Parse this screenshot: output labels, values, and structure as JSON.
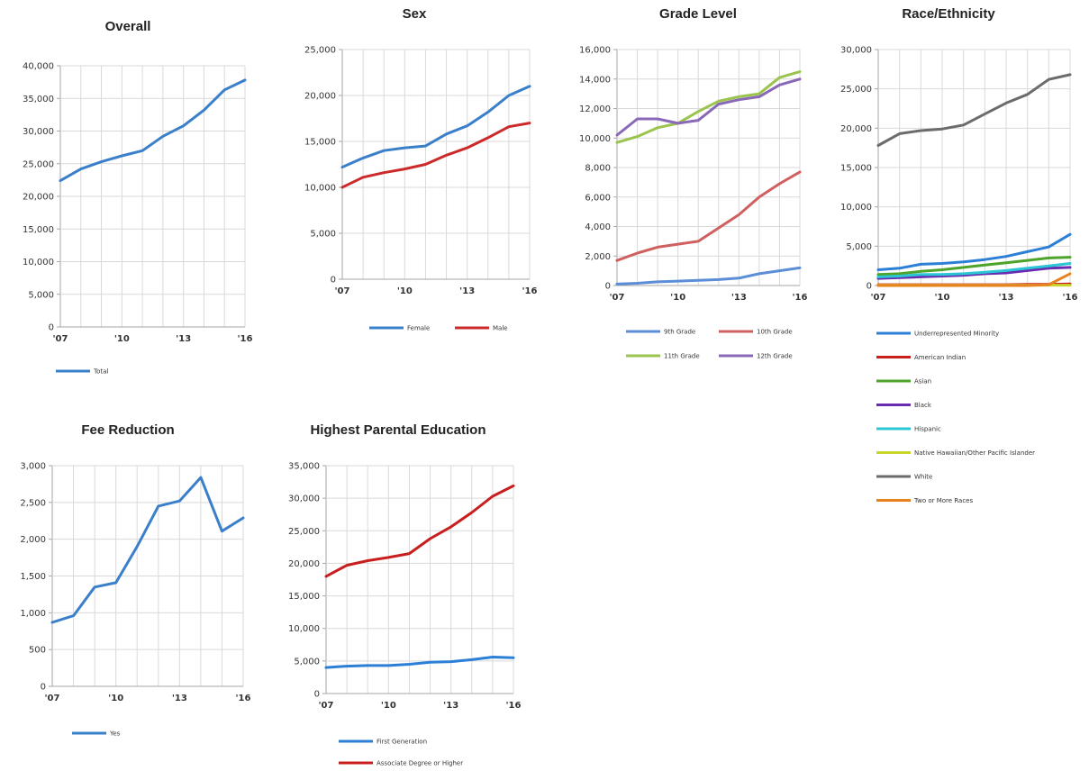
{
  "chart_data": [
    {
      "type": "line",
      "title": "Overall",
      "x": [
        2007,
        2008,
        2009,
        2010,
        2011,
        2012,
        2013,
        2014,
        2015,
        2016
      ],
      "x_ticks": [
        "'07",
        "'10",
        "'13",
        "'16"
      ],
      "ylim": [
        0,
        40000
      ],
      "y_step": 5000,
      "y_ticks_labels": [
        "0",
        "5,000",
        "10,000",
        "15,000",
        "20,000",
        "25,000",
        "30,000",
        "35,000",
        "40,000"
      ],
      "grid": true,
      "legend": "bottom",
      "series": [
        {
          "name": "Total",
          "color": "#3a7fc9",
          "values": [
            22400,
            24200,
            25300,
            26200,
            27000,
            29200,
            30800,
            33200,
            36300,
            37800
          ]
        }
      ]
    },
    {
      "type": "line",
      "title": "Sex",
      "x": [
        2007,
        2008,
        2009,
        2010,
        2011,
        2012,
        2013,
        2014,
        2015,
        2016
      ],
      "x_ticks": [
        "'07",
        "'10",
        "'13",
        "'16"
      ],
      "ylim": [
        0,
        25000
      ],
      "y_step": 5000,
      "y_ticks_labels": [
        "0",
        "5,000",
        "10,000",
        "15,000",
        "20,000",
        "25,000"
      ],
      "grid": true,
      "legend": "bottom",
      "series": [
        {
          "name": "Female",
          "color": "#3a7fc9",
          "values": [
            12200,
            13200,
            14000,
            14300,
            14500,
            15800,
            16700,
            18200,
            20000,
            21000
          ]
        },
        {
          "name": "Male",
          "color": "#cc2a2a",
          "values": [
            10000,
            11100,
            11600,
            12000,
            12500,
            13500,
            14300,
            15400,
            16600,
            17000
          ]
        }
      ]
    },
    {
      "type": "line",
      "title": "Grade Level",
      "x": [
        2007,
        2008,
        2009,
        2010,
        2011,
        2012,
        2013,
        2014,
        2015,
        2016
      ],
      "x_ticks": [
        "'07",
        "'10",
        "'13",
        "'16"
      ],
      "ylim": [
        0,
        16000
      ],
      "y_step": 2000,
      "y_ticks_labels": [
        "0",
        "2,000",
        "4,000",
        "6,000",
        "8,000",
        "10,000",
        "12,000",
        "14,000",
        "16,000"
      ],
      "grid": true,
      "legend": "bottom",
      "series": [
        {
          "name": "9th Grade",
          "color": "#5b8ed6",
          "values": [
            100,
            150,
            250,
            300,
            350,
            400,
            500,
            800,
            1000,
            1200
          ]
        },
        {
          "name": "10th Grade",
          "color": "#d06060",
          "values": [
            1700,
            2200,
            2600,
            2800,
            3000,
            3900,
            4800,
            6000,
            6900,
            7700
          ]
        },
        {
          "name": "11th Grade",
          "color": "#9bc44e",
          "values": [
            9700,
            10100,
            10700,
            11000,
            11800,
            12500,
            12800,
            13000,
            14100,
            14500
          ]
        },
        {
          "name": "12th Grade",
          "color": "#8a68b8",
          "values": [
            10200,
            11300,
            11300,
            11000,
            11200,
            12300,
            12600,
            12800,
            13600,
            14000
          ]
        }
      ]
    },
    {
      "type": "line",
      "title": "Race/Ethnicity",
      "x": [
        2007,
        2008,
        2009,
        2010,
        2011,
        2012,
        2013,
        2014,
        2015,
        2016
      ],
      "x_ticks": [
        "'07",
        "'10",
        "'13",
        "'16"
      ],
      "ylim": [
        0,
        30000
      ],
      "y_step": 5000,
      "y_ticks_labels": [
        "0",
        "5,000",
        "10,000",
        "15,000",
        "20,000",
        "25,000",
        "30,000"
      ],
      "grid": true,
      "legend": "bottom",
      "series": [
        {
          "name": "Underrepresented Minority",
          "color": "#2c7fd6",
          "values": [
            2000,
            2200,
            2700,
            2800,
            3000,
            3300,
            3700,
            4300,
            4900,
            6500
          ]
        },
        {
          "name": "American Indian",
          "color": "#c81e1e",
          "values": [
            100,
            100,
            100,
            100,
            100,
            100,
            100,
            150,
            150,
            200
          ]
        },
        {
          "name": "Asian",
          "color": "#4ea32a",
          "values": [
            1400,
            1500,
            1800,
            2000,
            2300,
            2600,
            2900,
            3200,
            3500,
            3600
          ]
        },
        {
          "name": "Black",
          "color": "#6a2bb0",
          "values": [
            900,
            1000,
            1100,
            1200,
            1300,
            1500,
            1600,
            1900,
            2200,
            2300
          ]
        },
        {
          "name": "Hispanic",
          "color": "#2bc6d6",
          "values": [
            1100,
            1200,
            1400,
            1400,
            1500,
            1700,
            1900,
            2200,
            2500,
            2800
          ]
        },
        {
          "name": "Native Hawaiian/Other Pacific Islander",
          "color": "#c8d62b",
          "values": [
            50,
            50,
            50,
            50,
            50,
            50,
            50,
            50,
            50,
            50
          ]
        },
        {
          "name": "White",
          "color": "#6b6b6b",
          "values": [
            17800,
            19300,
            19700,
            19900,
            20400,
            21800,
            23200,
            24300,
            26200,
            26800
          ]
        },
        {
          "name": "Two or More Races",
          "color": "#e8821e",
          "values": [
            0,
            0,
            0,
            0,
            0,
            0,
            0,
            0,
            100,
            1500
          ]
        }
      ]
    },
    {
      "type": "line",
      "title": "Fee Reduction",
      "x": [
        2007,
        2008,
        2009,
        2010,
        2011,
        2012,
        2013,
        2014,
        2015,
        2016
      ],
      "x_ticks": [
        "'07",
        "'10",
        "'13",
        "'16"
      ],
      "ylim": [
        0,
        3000
      ],
      "y_step": 500,
      "y_ticks_labels": [
        "0",
        "500",
        "1,000",
        "1,500",
        "2,000",
        "2,500",
        "3,000"
      ],
      "grid": true,
      "legend": "bottom",
      "series": [
        {
          "name": "Yes",
          "color": "#3a7fc9",
          "values": [
            870,
            960,
            1350,
            1410,
            1900,
            2450,
            2520,
            2840,
            2110,
            2290
          ]
        }
      ]
    },
    {
      "type": "line",
      "title": "Highest Parental Education",
      "x": [
        2007,
        2008,
        2009,
        2010,
        2011,
        2012,
        2013,
        2014,
        2015,
        2016
      ],
      "x_ticks": [
        "'07",
        "'10",
        "'13",
        "'16"
      ],
      "ylim": [
        0,
        35000
      ],
      "y_step": 5000,
      "y_ticks_labels": [
        "0",
        "5,000",
        "10,000",
        "15,000",
        "20,000",
        "25,000",
        "30,000",
        "35,000"
      ],
      "grid": true,
      "legend": "bottom",
      "series": [
        {
          "name": "First Generation",
          "color": "#2c7fd6",
          "values": [
            4000,
            4200,
            4300,
            4300,
            4500,
            4800,
            4900,
            5200,
            5600,
            5500
          ]
        },
        {
          "name": "Associate Degree or Higher",
          "color": "#c81e1e",
          "values": [
            18000,
            19700,
            20400,
            20900,
            21500,
            23800,
            25600,
            27800,
            30300,
            31900
          ]
        }
      ]
    }
  ]
}
